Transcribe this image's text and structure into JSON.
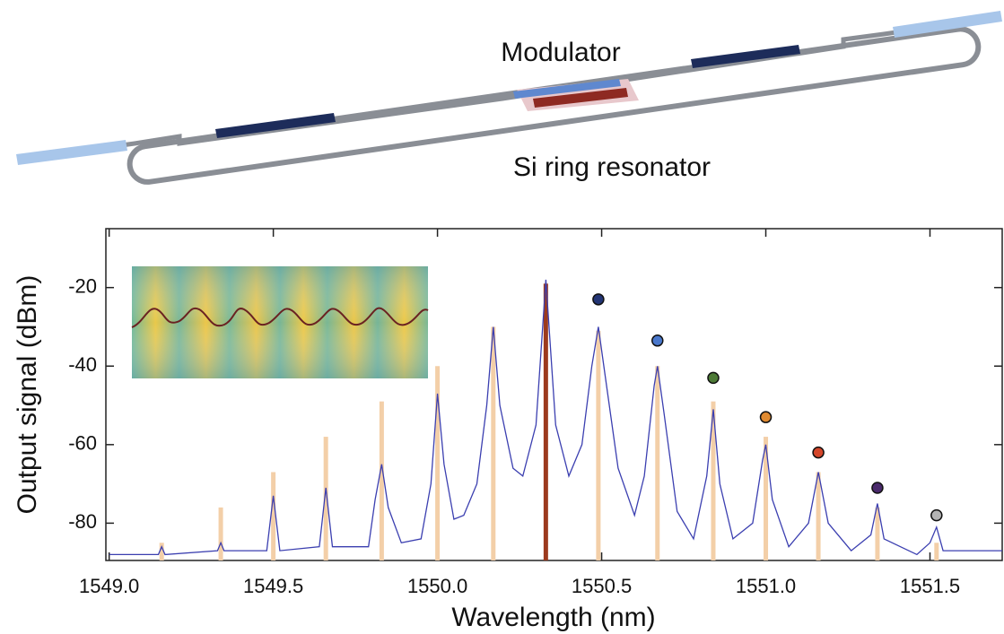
{
  "diagram": {
    "labels": [
      "Modulator",
      "Si ring resonator"
    ]
  },
  "chart_data": {
    "type": "line",
    "xlabel": "Wavelength (nm)",
    "ylabel": "Output signal (dBm)",
    "xlim": [
      1548.99,
      1551.72
    ],
    "ylim": [
      -89.5,
      -5
    ],
    "xticks": [
      {
        "value": 1549,
        "label": "1549.0"
      },
      1549.5,
      {
        "value": 1550,
        "label": "1550.0"
      },
      1550.5,
      {
        "value": 1551,
        "label": "1551.0"
      },
      1551.5
    ],
    "yticks": [
      -20,
      -40,
      -60,
      -80
    ],
    "series": [
      {
        "type": "bar",
        "color": "#f3cfa8",
        "x": [
          1549.16,
          1549.34,
          1549.5,
          1549.66,
          1549.83,
          1550.0,
          1550.17,
          1550.49,
          1550.67,
          1550.84,
          1551.0,
          1551.16,
          1551.34,
          1551.52
        ],
        "values": [
          -85,
          -76,
          -67,
          -58,
          -49,
          -40,
          -30,
          -31,
          -40,
          -49,
          -58,
          -67,
          -76,
          -85
        ]
      },
      {
        "type": "bar",
        "color": "#9c3a1e",
        "x": [
          1550.33
        ],
        "values": [
          -19
        ]
      },
      {
        "type": "line",
        "color": "#3b3fb0",
        "x": [
          1549.0,
          1549.15,
          1549.16,
          1549.17,
          1549.33,
          1549.34,
          1549.35,
          1549.48,
          1549.5,
          1549.52,
          1549.64,
          1549.66,
          1549.68,
          1549.79,
          1549.81,
          1549.83,
          1549.85,
          1549.89,
          1549.95,
          1549.98,
          1550.0,
          1550.02,
          1550.05,
          1550.08,
          1550.12,
          1550.15,
          1550.17,
          1550.19,
          1550.23,
          1550.26,
          1550.3,
          1550.33,
          1550.36,
          1550.4,
          1550.44,
          1550.47,
          1550.49,
          1550.51,
          1550.55,
          1550.6,
          1550.63,
          1550.66,
          1550.67,
          1550.69,
          1550.73,
          1550.78,
          1550.82,
          1550.84,
          1550.86,
          1550.9,
          1550.96,
          1550.99,
          1551.0,
          1551.02,
          1551.07,
          1551.13,
          1551.16,
          1551.19,
          1551.26,
          1551.32,
          1551.34,
          1551.36,
          1551.46,
          1551.5,
          1551.52,
          1551.54,
          1551.72
        ],
        "values": [
          -88,
          -88,
          -86,
          -88,
          -87,
          -85,
          -87,
          -87,
          -73,
          -87,
          -86,
          -71,
          -86,
          -86,
          -74,
          -65,
          -76,
          -85,
          -84,
          -70,
          -47,
          -65,
          -79,
          -78,
          -70,
          -50,
          -30,
          -50,
          -66,
          -68,
          -55,
          -18,
          -55,
          -68,
          -60,
          -40,
          -30,
          -42,
          -66,
          -78,
          -68,
          -45,
          -40,
          -52,
          -77,
          -84,
          -68,
          -51,
          -70,
          -84,
          -80,
          -64,
          -60,
          -74,
          -86,
          -80,
          -67,
          -80,
          -87,
          -83,
          -75,
          -84,
          -88,
          -85,
          -81,
          -87,
          -87
        ]
      },
      {
        "type": "scatter",
        "colors": [
          "#233575",
          "#4a78cc",
          "#4d7a36",
          "#e08a30",
          "#d4462a",
          "#4a2a6c",
          "#b4b4b4"
        ],
        "x": [
          1550.49,
          1550.67,
          1550.84,
          1551.0,
          1551.16,
          1551.34,
          1551.52
        ],
        "values": [
          -23,
          -33.5,
          -43,
          -53,
          -62,
          -71,
          -78
        ]
      }
    ]
  }
}
